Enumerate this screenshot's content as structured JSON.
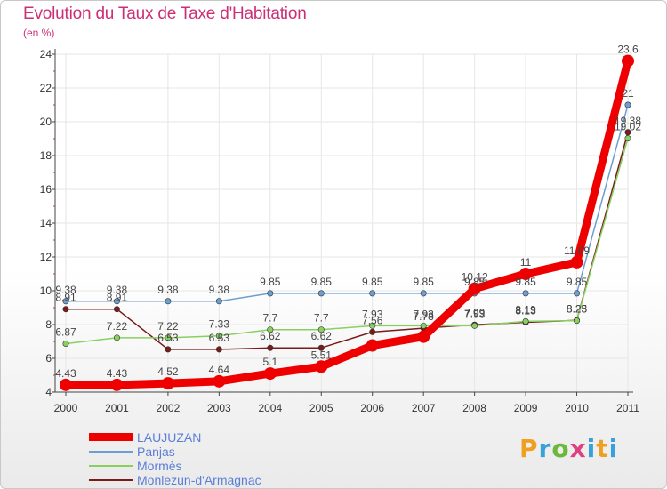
{
  "chart_data": {
    "type": "line",
    "title": "Evolution du Taux de Taxe d'Habitation",
    "subtitle": "(en %)",
    "categories": [
      "2000",
      "2001",
      "2002",
      "2003",
      "2004",
      "2005",
      "2006",
      "2007",
      "2008",
      "2009",
      "2010",
      "2011"
    ],
    "ylim": [
      4,
      24
    ],
    "yticks": [
      4,
      6,
      8,
      10,
      12,
      14,
      16,
      18,
      20,
      22,
      24
    ],
    "grid": true,
    "legend_position": "bottom-left",
    "series": [
      {
        "name": "LAUJUZAN",
        "color": "#ee0000",
        "values": [
          4.43,
          4.43,
          4.52,
          4.64,
          5.1,
          5.51,
          6.76,
          7.28,
          10.12,
          11,
          11.69,
          23.6
        ],
        "labels": [
          "4.43",
          "4.43",
          "4.52",
          "4.64",
          "5.1",
          "5.51",
          "",
          "",
          "10.12",
          "11",
          "11.69",
          "23.6"
        ]
      },
      {
        "name": "Panjas",
        "color": "#6b9fd1",
        "values": [
          9.38,
          9.38,
          9.38,
          9.38,
          9.85,
          9.85,
          9.85,
          9.85,
          9.85,
          9.85,
          9.85,
          21
        ],
        "labels": [
          "9.38",
          "9.38",
          "9.38",
          "9.38",
          "9.85",
          "9.85",
          "9.85",
          "9.85",
          "9.85",
          "9.85",
          "9.85",
          "21"
        ]
      },
      {
        "name": "Mormès",
        "color": "#88d060",
        "values": [
          6.87,
          7.22,
          7.22,
          7.33,
          7.7,
          7.7,
          7.93,
          7.93,
          7.93,
          8.19,
          8.23,
          19.02
        ],
        "labels": [
          "6.87",
          "7.22",
          "7.22",
          "7.33",
          "7.7",
          "7.7",
          "7.93",
          "7.93",
          "7.93",
          "8.19",
          "8.23",
          "19.02"
        ]
      },
      {
        "name": "Monlezun-d'Armagnac",
        "color": "#7a1a1a",
        "values": [
          8.91,
          8.91,
          6.53,
          6.53,
          6.62,
          6.62,
          7.56,
          7.78,
          7.99,
          8.13,
          8.25,
          19.38
        ],
        "labels": [
          "8.91",
          "8.91",
          "6.53",
          "6.53",
          "6.62",
          "6.62",
          "7.56",
          "7.78",
          "7.99",
          "8.13",
          "8.25",
          "19.38"
        ]
      }
    ]
  },
  "brand": {
    "p": "P",
    "r": "r",
    "o": "o",
    "x": "x",
    "i": "i",
    "t": "t",
    "i2": "i"
  }
}
